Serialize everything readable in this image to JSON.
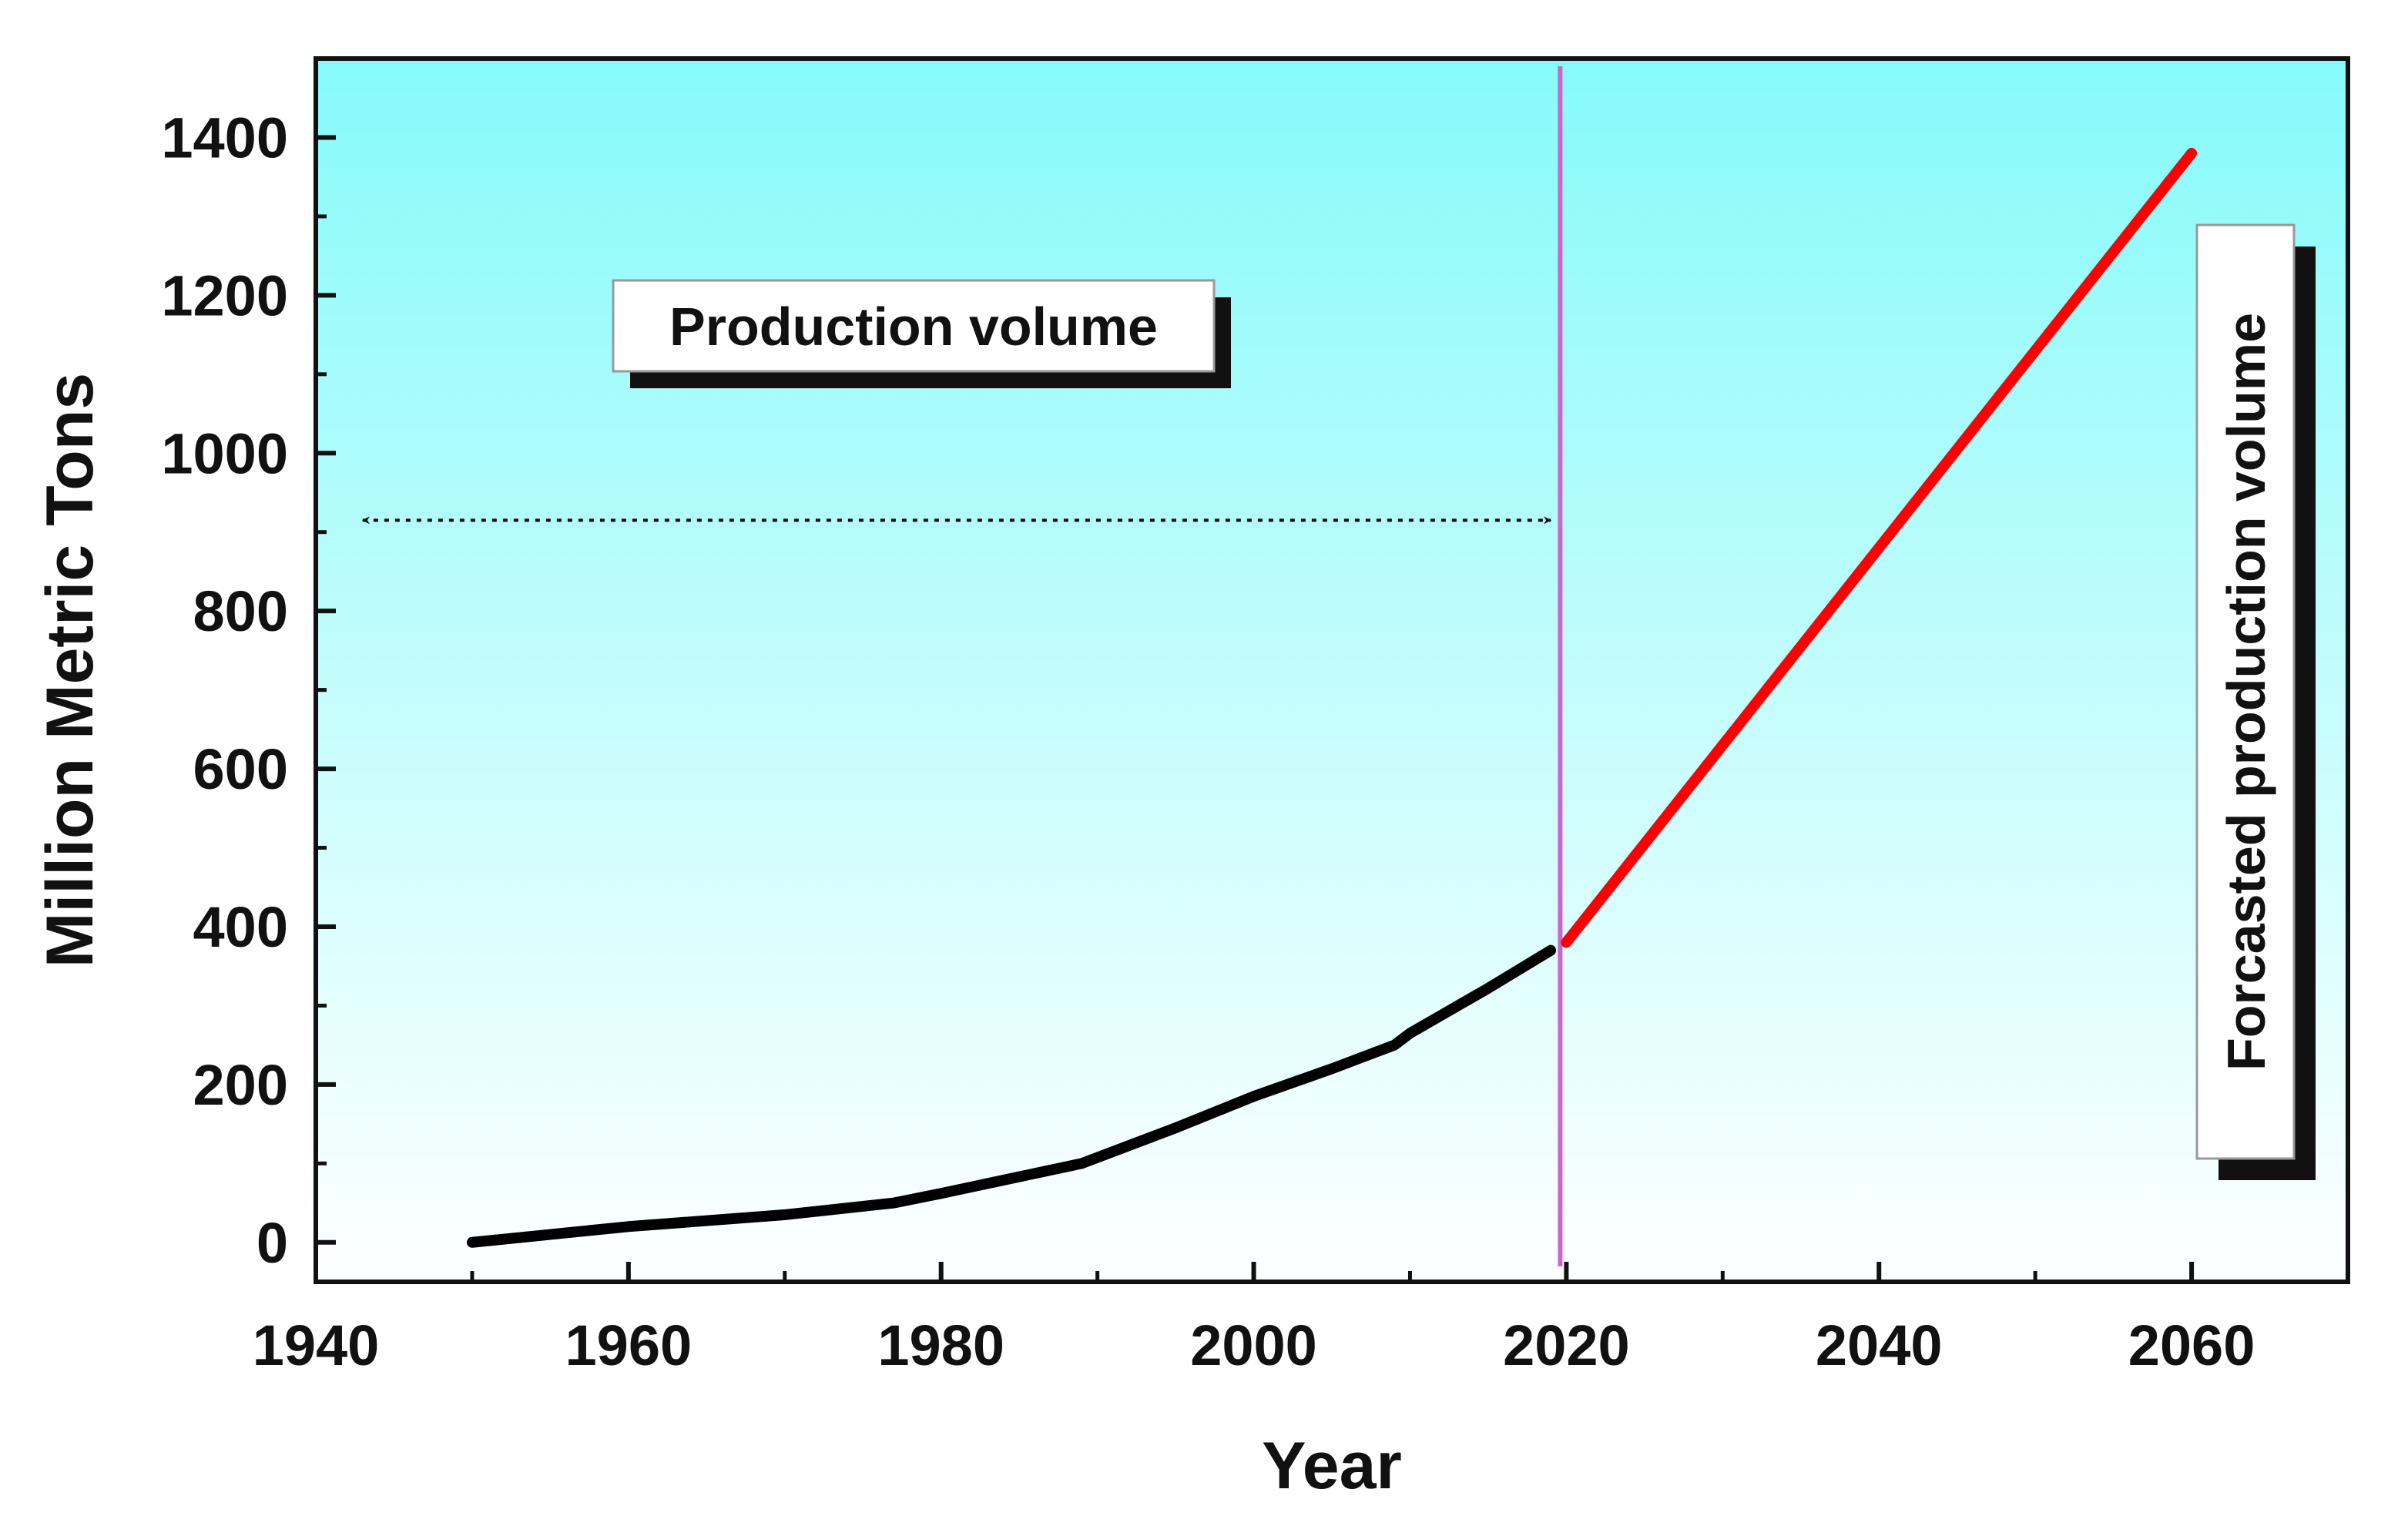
{
  "chart_data": {
    "type": "line",
    "xlabel": "Year",
    "ylabel": "Million Metric Tons",
    "xlim": [
      1940,
      2070
    ],
    "ylim": [
      -50,
      1500
    ],
    "xticks": [
      1940,
      1960,
      1980,
      2000,
      2020,
      2040,
      2060
    ],
    "yticks": [
      0,
      200,
      400,
      600,
      800,
      1000,
      1200,
      1400
    ],
    "grid": false,
    "background_gradient": [
      "#86fafa",
      "#ffffff"
    ],
    "series": [
      {
        "name": "Production volume",
        "color": "#000000",
        "points": [
          {
            "x": 1950,
            "y": 0
          },
          {
            "x": 1960,
            "y": 20
          },
          {
            "x": 1970,
            "y": 35
          },
          {
            "x": 1977,
            "y": 50
          },
          {
            "x": 1980,
            "y": 62
          },
          {
            "x": 1989,
            "y": 100
          },
          {
            "x": 1995,
            "y": 145
          },
          {
            "x": 2000,
            "y": 185
          },
          {
            "x": 2005,
            "y": 220
          },
          {
            "x": 2009,
            "y": 250
          },
          {
            "x": 2010,
            "y": 265
          },
          {
            "x": 2015,
            "y": 322
          },
          {
            "x": 2019,
            "y": 370
          }
        ]
      },
      {
        "name": "Forcasted production volume",
        "color": "#ff0000",
        "points": [
          {
            "x": 2020,
            "y": 380
          },
          {
            "x": 2060,
            "y": 1380
          }
        ]
      }
    ],
    "divider": {
      "x": 2020,
      "color": "#cc66cc"
    },
    "arrow_range": [
      1943,
      2019
    ],
    "arrow_y": 915,
    "annotations": {
      "production": "Production volume",
      "forecast": "Forcasted production volume"
    }
  }
}
